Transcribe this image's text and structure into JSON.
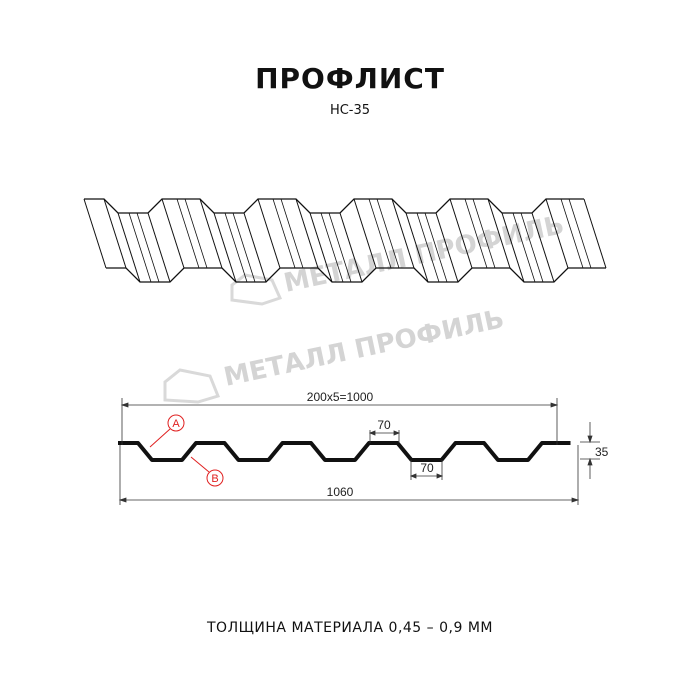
{
  "header": {
    "title": "ПРОФЛИСТ",
    "subtitle": "НС-35"
  },
  "watermark": {
    "text": "МЕТАЛЛ ПРОФИЛЬ"
  },
  "drawing": {
    "dim_pitch": "200x5=1000",
    "dim_total": "1060",
    "dim_top_rib": "70",
    "dim_bottom_rib": "70",
    "dim_height": "35",
    "label_a": "A",
    "label_b": "B"
  },
  "colors": {
    "line": "#111111",
    "accent": "#e02020",
    "watermark": "#d4d4d4"
  },
  "footer": {
    "text": "ТОЛЩИНА МАТЕРИАЛА 0,45 – 0,9 ММ"
  }
}
